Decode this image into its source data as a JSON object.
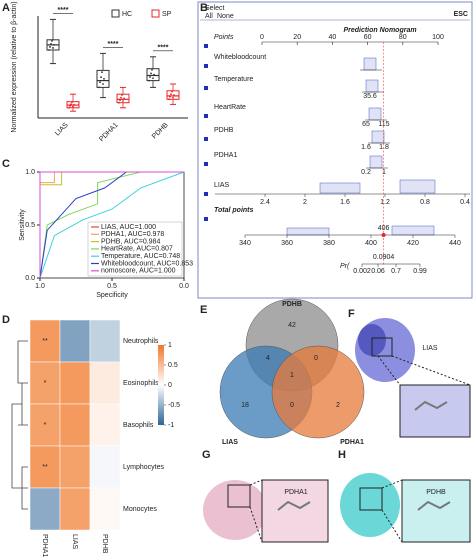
{
  "panels": [
    "A",
    "B",
    "C",
    "D",
    "E",
    "F",
    "G",
    "H"
  ],
  "nomogram": {
    "title": "Prediction Nomogram",
    "corner": "ESC",
    "menu": [
      "Select",
      "All",
      "None"
    ],
    "rows": [
      "Points",
      "Whitebloodcount",
      "Temperature",
      "HeartRate",
      "PDHB",
      "PDHA1",
      "LIAS",
      "Total points"
    ],
    "points_ticks": [
      0,
      20,
      40,
      60,
      80,
      100
    ],
    "lias_ticks": [
      2.4,
      2,
      1.6,
      1.2,
      0.8,
      0.4
    ],
    "total_ticks": [
      340,
      360,
      380,
      400,
      420,
      440
    ],
    "total_value": 406,
    "pr_label": "Pr(",
    "pr_ticks": [
      0.002,
      0.06,
      0.7,
      0.99
    ],
    "pr_value": 0.0904,
    "row_labels": [
      "35.6",
      "65",
      "115",
      "1.6",
      "1.8",
      "0.2",
      "1"
    ]
  },
  "chart_data": [
    {
      "type": "box",
      "ylabel": "Normalized expression (relative to β-actin)",
      "categories": [
        "LIAS",
        "PDHA1",
        "PDHB"
      ],
      "ylim": [
        0,
        3
      ],
      "series": [
        {
          "name": "HC",
          "color": "#333333",
          "boxes": [
            {
              "min": 1.6,
              "q1": 2.0,
              "median": 2.15,
              "q3": 2.3,
              "max": 2.9
            },
            {
              "min": 0.6,
              "q1": 0.9,
              "median": 1.1,
              "q3": 1.4,
              "max": 1.9
            },
            {
              "min": 0.9,
              "q1": 1.1,
              "median": 1.25,
              "q3": 1.45,
              "max": 1.8
            }
          ]
        },
        {
          "name": "SP",
          "color": "#e8262a",
          "boxes": [
            {
              "min": 0.2,
              "q1": 0.3,
              "median": 0.38,
              "q3": 0.48,
              "max": 0.7
            },
            {
              "min": 0.3,
              "q1": 0.45,
              "median": 0.55,
              "q3": 0.7,
              "max": 0.9
            },
            {
              "min": 0.4,
              "q1": 0.55,
              "median": 0.65,
              "q3": 0.8,
              "max": 1.0
            }
          ]
        }
      ],
      "annotations": [
        "****",
        "****",
        "****"
      ]
    },
    {
      "type": "line",
      "xlabel": "Specificity",
      "ylabel": "Sensitivity",
      "xlim": [
        1,
        0
      ],
      "ylim": [
        0,
        1
      ],
      "xticks": [
        {
          "value": 1,
          "label": "1.0"
        },
        {
          "value": 0.5,
          "label": "0.5"
        },
        {
          "value": 0,
          "label": "0.0"
        }
      ],
      "yticks": [
        {
          "value": 0,
          "label": "0.0"
        },
        {
          "value": 0.5,
          "label": "0.5"
        },
        {
          "value": 1,
          "label": "1.0"
        }
      ],
      "legend": "lower right",
      "series": [
        {
          "name": "LIAS, AUC=1.000",
          "color": "#e8463a",
          "x": [
            1,
            1,
            0
          ],
          "values": [
            0,
            1,
            1
          ]
        },
        {
          "name": "PDHA1, AUC=0.978",
          "color": "#f5a05a",
          "x": [
            1,
            1,
            0.9,
            0.9,
            0
          ],
          "values": [
            0,
            0.9,
            0.9,
            1,
            1
          ]
        },
        {
          "name": "PDHB, AUC=0.984",
          "color": "#c9c22a",
          "x": [
            1,
            1,
            0.85,
            0.85,
            0
          ],
          "values": [
            0,
            0.88,
            0.88,
            1,
            1
          ]
        },
        {
          "name": "HeartRate, AUC=0.807",
          "color": "#7ed957",
          "x": [
            1,
            0.95,
            0.8,
            0.6,
            0.6,
            0.3,
            0
          ],
          "values": [
            0,
            0.5,
            0.6,
            0.7,
            0.9,
            1,
            1
          ]
        },
        {
          "name": "Temperature, AUC=0.748",
          "color": "#3fd0e0",
          "x": [
            1,
            0.9,
            0.7,
            0.5,
            0.3,
            0
          ],
          "values": [
            0,
            0.4,
            0.55,
            0.65,
            0.85,
            1
          ]
        },
        {
          "name": "Whitebloodcount, AUC=0.853",
          "color": "#2b3fc9",
          "x": [
            1,
            0.95,
            0.85,
            0.75,
            0.55,
            0.4,
            0
          ],
          "values": [
            0,
            0.45,
            0.6,
            0.75,
            0.85,
            1,
            1
          ]
        },
        {
          "name": "nomoscore, AUC=1.000",
          "color": "#d94fd9",
          "x": [
            1,
            1,
            0
          ],
          "values": [
            0,
            1,
            1
          ]
        }
      ]
    },
    {
      "type": "heatmap",
      "columns": [
        "PDHA1",
        "LIAS",
        "PDHB"
      ],
      "rows": [
        "Neutrophils",
        "Eosinophils",
        "Basophils",
        "Lymphocytes",
        "Monocytes"
      ],
      "values": [
        [
          0.75,
          -0.6,
          -0.3
        ],
        [
          0.7,
          0.75,
          0.15
        ],
        [
          0.7,
          0.75,
          0.1
        ],
        [
          0.75,
          0.7,
          -0.05
        ],
        [
          -0.55,
          0.7,
          0.05
        ]
      ],
      "annotations": [
        [
          "**",
          null,
          null
        ],
        [
          "*",
          null,
          null
        ],
        [
          "*",
          null,
          null
        ],
        [
          "**",
          null,
          null
        ],
        [
          null,
          null,
          null
        ]
      ],
      "zlim": [
        -1,
        1
      ],
      "zticks": [
        1,
        0.5,
        0,
        -0.5,
        -1
      ],
      "colors": [
        "#2d6496",
        "#ffffff",
        "#f0782a"
      ]
    },
    {
      "type": "venn",
      "sets": [
        "PDHB",
        "LIAS",
        "PDHA1"
      ],
      "colors": [
        "#8c8c8c",
        "#3a7bb5",
        "#e8793a"
      ],
      "regions": [
        {
          "sets": [
            0
          ],
          "count": 42
        },
        {
          "sets": [
            1
          ],
          "count": 18
        },
        {
          "sets": [
            2
          ],
          "count": 2
        },
        {
          "sets": [
            0,
            1
          ],
          "count": 4
        },
        {
          "sets": [
            0,
            2
          ],
          "count": 0
        },
        {
          "sets": [
            1,
            2
          ],
          "count": 0
        },
        {
          "sets": [
            0,
            1,
            2
          ],
          "count": 1
        }
      ]
    }
  ],
  "proteins": [
    "LIAS",
    "PDHA1",
    "PDHB"
  ]
}
